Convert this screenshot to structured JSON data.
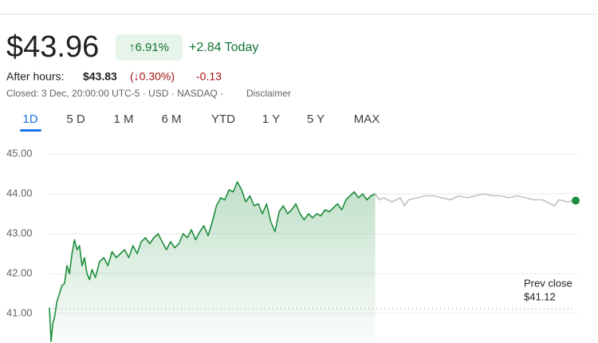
{
  "quote": {
    "price": "$43.96",
    "change_pct": "↑6.91%",
    "change_today": "+2.84 Today",
    "after_hours_label": "After hours:",
    "after_hours_price": "$43.83",
    "after_hours_pct": "(↓0.30%)",
    "after_hours_change": "-0.13",
    "status": "Closed: 3 Dec, 20:00:00 UTC-5 · USD · NASDAQ ·",
    "disclaimer": "Disclaimer"
  },
  "tabs": [
    "1D",
    "5 D",
    "1 M",
    "6 M",
    "YTD",
    "1 Y",
    "5 Y",
    "MAX"
  ],
  "chart_data": {
    "type": "line",
    "xlim": [
      0,
      630
    ],
    "ylim": [
      40.26,
      45.3
    ],
    "yticks": [
      {
        "value": 45,
        "label": "45.00"
      },
      {
        "value": 44,
        "label": "44.00"
      },
      {
        "value": 43,
        "label": "43.00"
      },
      {
        "value": 42,
        "label": "42.00"
      },
      {
        "value": 41,
        "label": "41.00"
      }
    ],
    "grid": true,
    "series": [
      {
        "color": "#1e8e3e",
        "fill": true,
        "x": [
          0,
          2,
          4,
          6,
          9,
          12,
          15,
          18,
          21,
          24,
          27,
          30,
          33,
          36,
          39,
          42,
          45,
          48,
          51,
          55,
          60,
          65,
          70,
          75,
          80,
          85,
          90,
          95,
          100,
          105,
          110,
          115,
          120,
          125,
          130,
          135,
          140,
          145,
          150,
          155,
          160,
          165,
          170,
          175,
          180,
          185,
          190,
          195,
          200,
          205,
          210,
          215,
          220,
          225,
          230,
          235,
          240,
          245,
          250,
          255,
          260,
          265,
          270,
          275,
          280,
          285,
          290,
          295,
          300,
          305,
          310,
          315,
          320,
          325,
          330,
          335,
          340,
          345,
          350,
          355,
          360,
          365,
          370,
          375,
          380,
          385,
          390
        ],
        "values": [
          41.15,
          40.3,
          40.75,
          40.9,
          41.3,
          41.5,
          41.7,
          41.75,
          42.2,
          42.0,
          42.5,
          42.85,
          42.6,
          42.7,
          42.2,
          42.4,
          42.0,
          41.85,
          42.1,
          41.9,
          42.3,
          42.4,
          42.2,
          42.55,
          42.4,
          42.5,
          42.6,
          42.4,
          42.7,
          42.5,
          42.8,
          42.9,
          42.75,
          42.9,
          43.0,
          42.8,
          42.6,
          42.8,
          42.65,
          42.75,
          43.0,
          42.9,
          43.1,
          42.85,
          43.05,
          43.2,
          42.95,
          43.3,
          43.7,
          43.9,
          43.85,
          44.1,
          44.05,
          44.3,
          44.1,
          43.8,
          43.95,
          43.7,
          43.75,
          43.5,
          43.75,
          43.3,
          43.05,
          43.55,
          43.7,
          43.5,
          43.6,
          43.75,
          43.5,
          43.35,
          43.5,
          43.4,
          43.5,
          43.45,
          43.6,
          43.55,
          43.65,
          43.75,
          43.6,
          43.85,
          43.95,
          44.05,
          43.9,
          44.0,
          43.85,
          43.95,
          44.0
        ]
      },
      {
        "color": "#bdc1c6",
        "fill": false,
        "end_marker_color": "#1e8e3e",
        "x": [
          390,
          395,
          400,
          410,
          420,
          425,
          430,
          440,
          450,
          460,
          470,
          480,
          490,
          500,
          510,
          520,
          530,
          540,
          550,
          560,
          570,
          580,
          590,
          600,
          605,
          610,
          620,
          630
        ],
        "values": [
          44.0,
          43.85,
          43.9,
          43.8,
          43.9,
          43.7,
          43.85,
          43.9,
          43.95,
          43.95,
          43.9,
          43.85,
          43.95,
          43.9,
          43.95,
          44.0,
          43.95,
          43.95,
          43.9,
          43.95,
          43.9,
          43.85,
          43.85,
          43.75,
          43.7,
          43.85,
          43.8,
          43.83
        ]
      }
    ],
    "prev_close": 41.12,
    "annotations": [
      "Prev close",
      "$41.12"
    ]
  }
}
